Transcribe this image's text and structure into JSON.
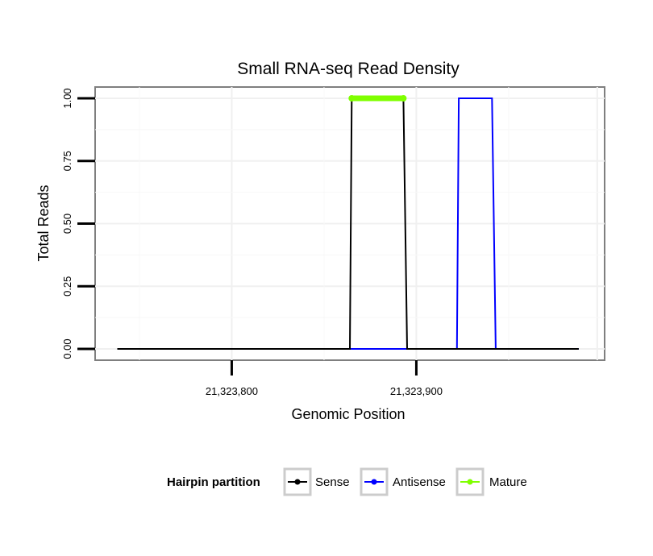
{
  "chart_data": {
    "type": "line",
    "title": "Small RNA-seq Read Density",
    "xlabel": "Genomic Position",
    "ylabel": "Total Reads",
    "xlim": [
      21323726,
      21324002
    ],
    "ylim": [
      -0.045,
      1.045
    ],
    "x_ticks": [
      {
        "value": 21323800,
        "label": "21,323,800"
      },
      {
        "value": 21323900,
        "label": "21,323,900"
      }
    ],
    "y_ticks": [
      {
        "value": 0.0,
        "label": "0.00"
      },
      {
        "value": 0.25,
        "label": "0.25"
      },
      {
        "value": 0.5,
        "label": "0.50"
      },
      {
        "value": 0.75,
        "label": "0.75"
      },
      {
        "value": 1.0,
        "label": "1.00"
      }
    ],
    "grid": true,
    "series": [
      {
        "name": "Sense",
        "color": "#000000",
        "x": [
          21323738,
          21323864,
          21323865,
          21323893,
          21323895,
          21323988
        ],
        "y": [
          0,
          0,
          1,
          1,
          0,
          0
        ]
      },
      {
        "name": "Antisense",
        "color": "#0000ff",
        "x": [
          21323864,
          21323922,
          21323923,
          21323941,
          21323943,
          21323988
        ],
        "y": [
          0,
          0,
          1,
          1,
          0,
          0
        ]
      },
      {
        "name": "Mature",
        "color": "#7fff00",
        "x": [
          21323865,
          21323893
        ],
        "y": [
          1,
          1
        ]
      }
    ],
    "legend": {
      "title": "Hairpin partition",
      "position": "bottom",
      "entries": [
        {
          "name": "Sense",
          "color": "#000000"
        },
        {
          "name": "Antisense",
          "color": "#0000ff"
        },
        {
          "name": "Mature",
          "color": "#7fff00"
        }
      ]
    }
  }
}
